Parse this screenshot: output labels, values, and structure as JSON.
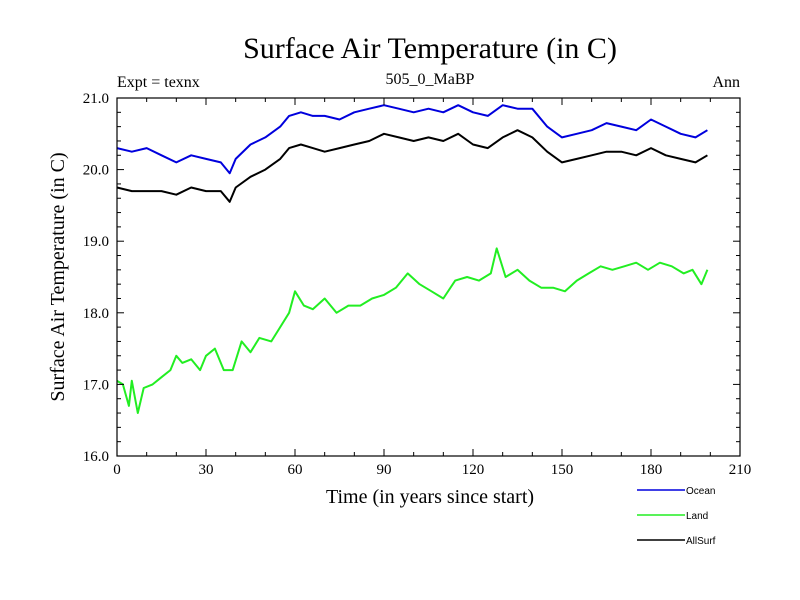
{
  "chart_data": {
    "type": "line",
    "title": "Surface Air Temperature (in C)",
    "subtitle_left": "Expt = texnx",
    "subtitle_center": "505_0_MaBP",
    "subtitle_right": "Ann",
    "xlabel": "Time (in years since start)",
    "ylabel": "Surface Air Temperature (in C)",
    "xlim": [
      0,
      210
    ],
    "ylim": [
      16.0,
      21.0
    ],
    "xticks": [
      0,
      30,
      60,
      90,
      120,
      150,
      180,
      210
    ],
    "yticks": [
      "16.0",
      "17.0",
      "18.0",
      "19.0",
      "20.0",
      "21.0"
    ],
    "legend_position": "bottom-right, below plot",
    "series": [
      {
        "name": "Ocean",
        "color": "#0000dd",
        "x": [
          0,
          5,
          10,
          15,
          20,
          25,
          30,
          35,
          38,
          40,
          45,
          50,
          55,
          58,
          62,
          66,
          70,
          75,
          80,
          85,
          90,
          95,
          100,
          105,
          110,
          115,
          120,
          125,
          130,
          135,
          140,
          145,
          150,
          155,
          160,
          165,
          170,
          175,
          180,
          185,
          190,
          195,
          199
        ],
        "values": [
          20.3,
          20.25,
          20.3,
          20.2,
          20.1,
          20.2,
          20.15,
          20.1,
          19.95,
          20.15,
          20.35,
          20.45,
          20.6,
          20.75,
          20.8,
          20.75,
          20.75,
          20.7,
          20.8,
          20.85,
          20.9,
          20.85,
          20.8,
          20.85,
          20.8,
          20.9,
          20.8,
          20.75,
          20.9,
          20.85,
          20.85,
          20.6,
          20.45,
          20.5,
          20.55,
          20.65,
          20.6,
          20.55,
          20.7,
          20.6,
          20.5,
          20.45,
          20.55
        ]
      },
      {
        "name": "Land",
        "color": "#22ee22",
        "x": [
          0,
          2,
          4,
          5,
          7,
          9,
          12,
          15,
          18,
          20,
          22,
          25,
          28,
          30,
          33,
          36,
          39,
          42,
          45,
          48,
          52,
          55,
          58,
          60,
          63,
          66,
          70,
          74,
          78,
          82,
          86,
          90,
          94,
          98,
          102,
          106,
          110,
          114,
          118,
          122,
          126,
          128,
          131,
          135,
          139,
          143,
          147,
          151,
          155,
          159,
          163,
          167,
          171,
          175,
          179,
          183,
          187,
          191,
          194,
          197,
          199
        ],
        "values": [
          17.05,
          17.0,
          16.7,
          17.05,
          16.6,
          16.95,
          17.0,
          17.1,
          17.2,
          17.4,
          17.3,
          17.35,
          17.2,
          17.4,
          17.5,
          17.2,
          17.2,
          17.6,
          17.45,
          17.65,
          17.6,
          17.8,
          18.0,
          18.3,
          18.1,
          18.05,
          18.2,
          18.0,
          18.1,
          18.1,
          18.2,
          18.25,
          18.35,
          18.55,
          18.4,
          18.3,
          18.2,
          18.45,
          18.5,
          18.45,
          18.55,
          18.9,
          18.5,
          18.6,
          18.45,
          18.35,
          18.35,
          18.3,
          18.45,
          18.55,
          18.65,
          18.6,
          18.65,
          18.7,
          18.6,
          18.7,
          18.65,
          18.55,
          18.6,
          18.4,
          18.6
        ]
      },
      {
        "name": "AllSurf",
        "color": "#000000",
        "x": [
          0,
          5,
          10,
          15,
          20,
          25,
          30,
          35,
          38,
          40,
          45,
          50,
          55,
          58,
          62,
          66,
          70,
          75,
          80,
          85,
          90,
          95,
          100,
          105,
          110,
          115,
          120,
          125,
          130,
          135,
          140,
          145,
          150,
          155,
          160,
          165,
          170,
          175,
          180,
          185,
          190,
          195,
          199
        ],
        "values": [
          19.75,
          19.7,
          19.7,
          19.7,
          19.65,
          19.75,
          19.7,
          19.7,
          19.55,
          19.75,
          19.9,
          20.0,
          20.15,
          20.3,
          20.35,
          20.3,
          20.25,
          20.3,
          20.35,
          20.4,
          20.5,
          20.45,
          20.4,
          20.45,
          20.4,
          20.5,
          20.35,
          20.3,
          20.45,
          20.55,
          20.45,
          20.25,
          20.1,
          20.15,
          20.2,
          20.25,
          20.25,
          20.2,
          20.3,
          20.2,
          20.15,
          20.1,
          20.2
        ]
      }
    ]
  }
}
